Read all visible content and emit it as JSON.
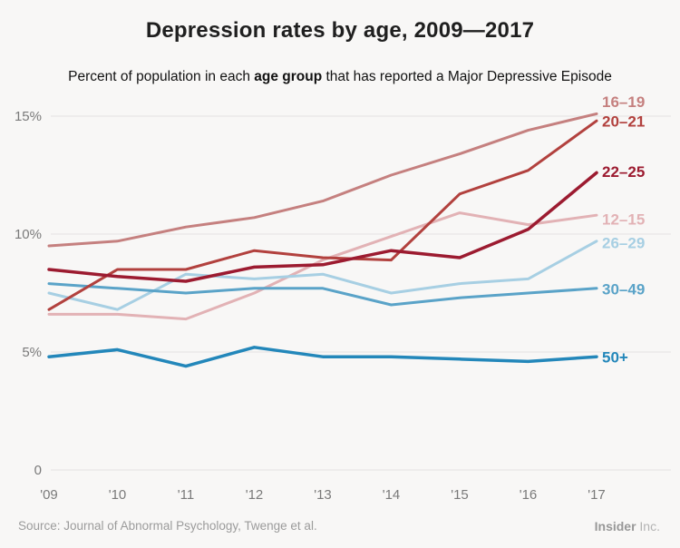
{
  "header": {
    "title": "Depression rates by age, 2009—2017",
    "subtitle_prefix": "Percent of population in each ",
    "subtitle_bold": "age group",
    "subtitle_suffix": " that has reported a Major Depressive Episode"
  },
  "footer": {
    "source": "Source: Journal of Abnormal Psychology, Twenge et al.",
    "brand_name": "Insider",
    "brand_suffix": " Inc."
  },
  "chart_data": {
    "type": "line",
    "x": [
      2009,
      2010,
      2011,
      2012,
      2013,
      2014,
      2015,
      2016,
      2017
    ],
    "x_tick_labels": [
      "'09",
      "'10",
      "'11",
      "'12",
      "'13",
      "'14",
      "'15",
      "'16",
      "'17"
    ],
    "y_ticks": [
      {
        "label": "0",
        "value": 0
      },
      {
        "label": "5%",
        "value": 5
      },
      {
        "label": "10%",
        "value": 10
      },
      {
        "label": "15%",
        "value": 15
      }
    ],
    "ylim": [
      0,
      15.7
    ],
    "grid": true,
    "legend_position": "right-of-line-ends",
    "axis_color": "#7a7a7a",
    "grid_color": "#e3e2e1",
    "series": [
      {
        "name": "16–19",
        "color": "#c5807f",
        "width": 3,
        "z": 3,
        "label_dy": -12,
        "values": [
          9.5,
          9.7,
          10.3,
          10.7,
          11.4,
          12.5,
          13.4,
          14.4,
          15.1
        ]
      },
      {
        "name": "20–21",
        "color": "#b2413e",
        "width": 3,
        "z": 6,
        "label_dy": 2,
        "values": [
          6.8,
          8.5,
          8.5,
          9.3,
          9.0,
          8.9,
          11.7,
          12.7,
          14.8
        ]
      },
      {
        "name": "22–25",
        "color": "#9c1b30",
        "width": 3.5,
        "z": 7,
        "label_dy": 0,
        "values": [
          8.5,
          8.2,
          8.0,
          8.6,
          8.7,
          9.3,
          9.0,
          10.2,
          12.6
        ]
      },
      {
        "name": "12–15",
        "color": "#e2b2b5",
        "width": 3,
        "z": 1,
        "label_dy": 6,
        "values": [
          6.6,
          6.6,
          6.4,
          7.5,
          8.9,
          9.9,
          10.9,
          10.4,
          10.8
        ]
      },
      {
        "name": "26–29",
        "color": "#a7cfe3",
        "width": 3,
        "z": 2,
        "label_dy": 3,
        "values": [
          7.5,
          6.8,
          8.3,
          8.1,
          8.3,
          7.5,
          7.9,
          8.1,
          9.7
        ]
      },
      {
        "name": "30–49",
        "color": "#5aa3c8",
        "width": 3,
        "z": 4,
        "label_dy": 2,
        "values": [
          7.9,
          7.7,
          7.5,
          7.7,
          7.7,
          7.0,
          7.3,
          7.5,
          7.7
        ]
      },
      {
        "name": "50+",
        "color": "#2387ba",
        "width": 3.5,
        "z": 5,
        "label_dy": 2,
        "values": [
          4.8,
          5.1,
          4.4,
          5.2,
          4.8,
          4.8,
          4.7,
          4.6,
          4.8
        ]
      }
    ]
  }
}
